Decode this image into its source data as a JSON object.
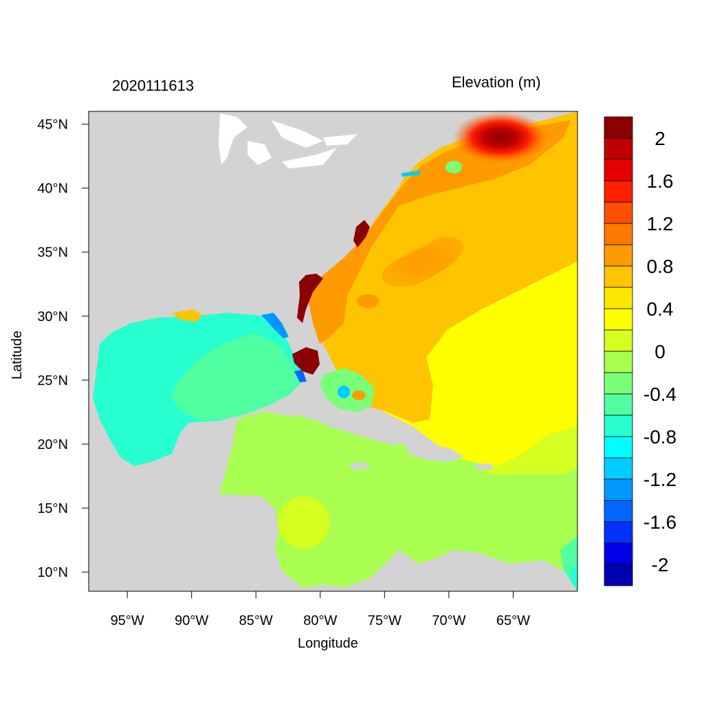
{
  "header": {
    "date_code": "2020111613",
    "colorbar_title": "Elevation (m)"
  },
  "axes": {
    "xlabel": "Longitude",
    "ylabel": "Latitude",
    "x_ticks": [
      "95°W",
      "90°W",
      "85°W",
      "80°W",
      "75°W",
      "70°W",
      "65°W"
    ],
    "y_ticks": [
      "45°N",
      "40°N",
      "35°N",
      "30°N",
      "25°N",
      "20°N",
      "15°N",
      "10°N"
    ],
    "lon_range": [
      -98,
      -60
    ],
    "lat_range": [
      8.5,
      46
    ]
  },
  "colorbar": {
    "labels": [
      "2",
      "1.6",
      "1.2",
      "0.8",
      "0.4",
      "0",
      "-0.4",
      "-0.8",
      "-1.2",
      "-1.6",
      "-2"
    ],
    "colors": [
      "#8b0000",
      "#c00000",
      "#e60000",
      "#ff2000",
      "#ff5000",
      "#ff7800",
      "#ff9a00",
      "#ffc400",
      "#ffe800",
      "#ffff00",
      "#d4ff20",
      "#a8ff50",
      "#7aff7a",
      "#50ffa0",
      "#28ffd0",
      "#00ffff",
      "#00ccff",
      "#0098ff",
      "#0066ff",
      "#0033ff",
      "#0000e6",
      "#0000b0"
    ]
  },
  "map": {
    "land_color": "#d3d3d3",
    "water_color": "#ffffff"
  }
}
